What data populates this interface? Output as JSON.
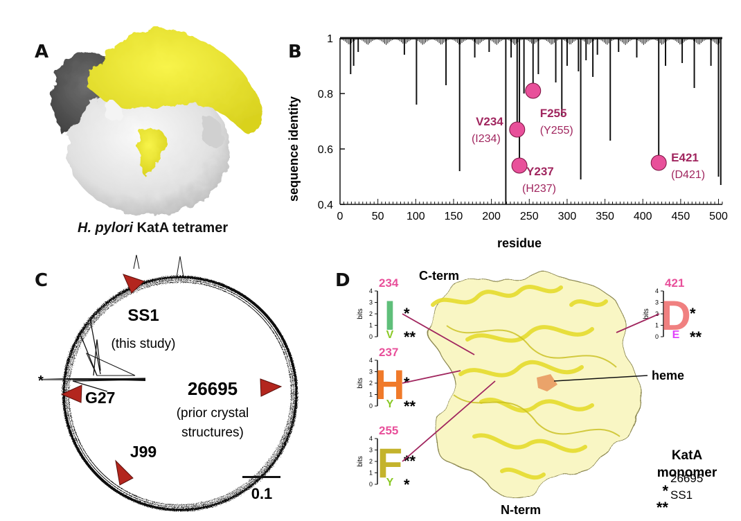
{
  "panels": {
    "a_label": "A",
    "b_label": "B",
    "c_label": "C",
    "d_label": "D"
  },
  "panel_a": {
    "caption_italic": "H. pylori",
    "caption_rest": " KatA tetramer",
    "colors": {
      "chain_yellow": "#f2ee3a",
      "chain_dark": "#595959",
      "chain_white": "#ececec"
    }
  },
  "chart_data": {
    "type": "line",
    "xlabel": "residue",
    "ylabel": "sequence identity",
    "xlim": [
      0,
      505
    ],
    "ylim": [
      0.4,
      1
    ],
    "x_ticks": [
      "0",
      "50",
      "100",
      "150",
      "200",
      "250",
      "300",
      "350",
      "400",
      "450",
      "500"
    ],
    "y_ticks": [
      "0.4",
      "0.6",
      "0.8",
      "1"
    ],
    "dips": [
      {
        "x": 14,
        "y": 0.87
      },
      {
        "x": 18,
        "y": 0.9
      },
      {
        "x": 24,
        "y": 0.95
      },
      {
        "x": 85,
        "y": 0.94
      },
      {
        "x": 101,
        "y": 0.76
      },
      {
        "x": 140,
        "y": 0.83
      },
      {
        "x": 158,
        "y": 0.52
      },
      {
        "x": 178,
        "y": 0.93
      },
      {
        "x": 197,
        "y": 0.95
      },
      {
        "x": 219,
        "y": 0.4
      },
      {
        "x": 226,
        "y": 0.93
      },
      {
        "x": 234,
        "y": 0.67
      },
      {
        "x": 237,
        "y": 0.54
      },
      {
        "x": 243,
        "y": 0.8
      },
      {
        "x": 255,
        "y": 0.81
      },
      {
        "x": 262,
        "y": 0.87
      },
      {
        "x": 285,
        "y": 0.84
      },
      {
        "x": 293,
        "y": 0.72
      },
      {
        "x": 300,
        "y": 0.9
      },
      {
        "x": 315,
        "y": 0.88
      },
      {
        "x": 318,
        "y": 0.49
      },
      {
        "x": 325,
        "y": 0.92
      },
      {
        "x": 334,
        "y": 0.86
      },
      {
        "x": 340,
        "y": 0.94
      },
      {
        "x": 357,
        "y": 0.63
      },
      {
        "x": 368,
        "y": 0.95
      },
      {
        "x": 392,
        "y": 0.93
      },
      {
        "x": 421,
        "y": 0.55
      },
      {
        "x": 430,
        "y": 0.9
      },
      {
        "x": 452,
        "y": 0.91
      },
      {
        "x": 468,
        "y": 0.82
      },
      {
        "x": 490,
        "y": 0.9
      },
      {
        "x": 500,
        "y": 0.5
      },
      {
        "x": 503,
        "y": 0.47
      }
    ],
    "highlights": [
      {
        "x": 234,
        "y": 0.67,
        "label": "V234",
        "sub": "(I234)"
      },
      {
        "x": 237,
        "y": 0.54,
        "label": "Y237",
        "sub": "(H237)"
      },
      {
        "x": 255,
        "y": 0.81,
        "label": "F255",
        "sub": "(Y255)"
      },
      {
        "x": 421,
        "y": 0.55,
        "label": "E421",
        "sub": "(D421)"
      }
    ],
    "highlight_color": "#e8509a",
    "label_color": "#a0255e"
  },
  "panel_c": {
    "strains": [
      {
        "name": "SS1",
        "sub1": "(this study)",
        "sub2": ""
      },
      {
        "name": "G27",
        "sub1": "",
        "sub2": ""
      },
      {
        "name": "26695",
        "sub1": "(prior crystal",
        "sub2": "structures)"
      },
      {
        "name": "J99",
        "sub1": "",
        "sub2": ""
      }
    ],
    "asterisk": "*",
    "scale_label": "0.1",
    "marker_color": "#b3261e"
  },
  "panel_d": {
    "c_term": "C-term",
    "n_term": "N-term",
    "heme": "heme",
    "title_line1": "KatA",
    "title_line2": "monomer",
    "legend": [
      {
        "mark": "*",
        "strain": "26695"
      },
      {
        "mark": "**",
        "strain": "SS1"
      }
    ],
    "bits_label": "bits",
    "logo_ticks": [
      "0",
      "1",
      "2",
      "3",
      "4"
    ],
    "logos": [
      {
        "pos": "234",
        "top": "I",
        "top_color": "#5fbf7a",
        "top_mark": "*",
        "bottom": "V",
        "bottom_color": "#8ac926",
        "bottom_mark": "**"
      },
      {
        "pos": "237",
        "top": "H",
        "top_color": "#f07a2a",
        "top_mark": "*",
        "bottom": "Y",
        "bottom_color": "#8ac926",
        "bottom_mark": "**"
      },
      {
        "pos": "255",
        "top": "F",
        "top_color": "#c4b32c",
        "top_mark": "**",
        "bottom": "Y",
        "bottom_color": "#8ac926",
        "bottom_mark": "*"
      },
      {
        "pos": "421",
        "top": "D",
        "top_color": "#f08080",
        "top_mark": "*",
        "bottom": "E",
        "bottom_color": "#e040fb",
        "bottom_mark": "**"
      }
    ],
    "pos_color": "#e84f9a",
    "line_color": "#a0255e"
  }
}
